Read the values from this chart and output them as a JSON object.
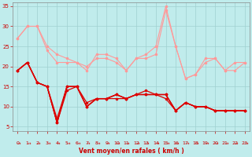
{
  "background_color": "#c0ecec",
  "grid_color": "#a0d0d0",
  "line_color_light": "#ff9999",
  "line_color_dark": "#dd0000",
  "xlabel": "Vent moyen/en rafales ( km/h )",
  "xlabel_color": "#cc0000",
  "tick_color": "#cc0000",
  "x_ticks": [
    0,
    1,
    2,
    3,
    4,
    5,
    6,
    7,
    8,
    9,
    10,
    11,
    12,
    13,
    14,
    15,
    16,
    17,
    18,
    19,
    20,
    21,
    22,
    23
  ],
  "ylim": [
    4,
    36
  ],
  "yticks": [
    5,
    10,
    15,
    20,
    25,
    30,
    35
  ],
  "series_light": [
    [
      27,
      30,
      30,
      24,
      21,
      21,
      21,
      19,
      23,
      23,
      22,
      19,
      22,
      23,
      25,
      35,
      25,
      17,
      18,
      22,
      22,
      19,
      21,
      21
    ],
    [
      27,
      30,
      30,
      25,
      23,
      22,
      21,
      20,
      22,
      22,
      21,
      19,
      22,
      22,
      23,
      34,
      25,
      17,
      18,
      21,
      22,
      19,
      19,
      21
    ]
  ],
  "series_dark": [
    [
      19,
      21,
      16,
      15,
      6,
      15,
      15,
      10,
      12,
      12,
      13,
      12,
      13,
      14,
      13,
      13,
      9,
      11,
      10,
      10,
      9,
      9,
      9,
      9
    ],
    [
      19,
      21,
      16,
      15,
      6,
      15,
      15,
      11,
      12,
      12,
      13,
      12,
      13,
      13,
      13,
      13,
      9,
      11,
      10,
      10,
      9,
      9,
      9,
      9
    ],
    [
      19,
      21,
      16,
      15,
      7,
      15,
      15,
      10,
      12,
      12,
      13,
      12,
      13,
      13,
      13,
      13,
      9,
      11,
      10,
      10,
      9,
      9,
      9,
      9
    ],
    [
      19,
      21,
      16,
      15,
      6,
      14,
      15,
      10,
      12,
      12,
      12,
      12,
      13,
      13,
      13,
      12,
      9,
      11,
      10,
      10,
      9,
      9,
      9,
      9
    ]
  ],
  "arrow_color": "#cc0000"
}
